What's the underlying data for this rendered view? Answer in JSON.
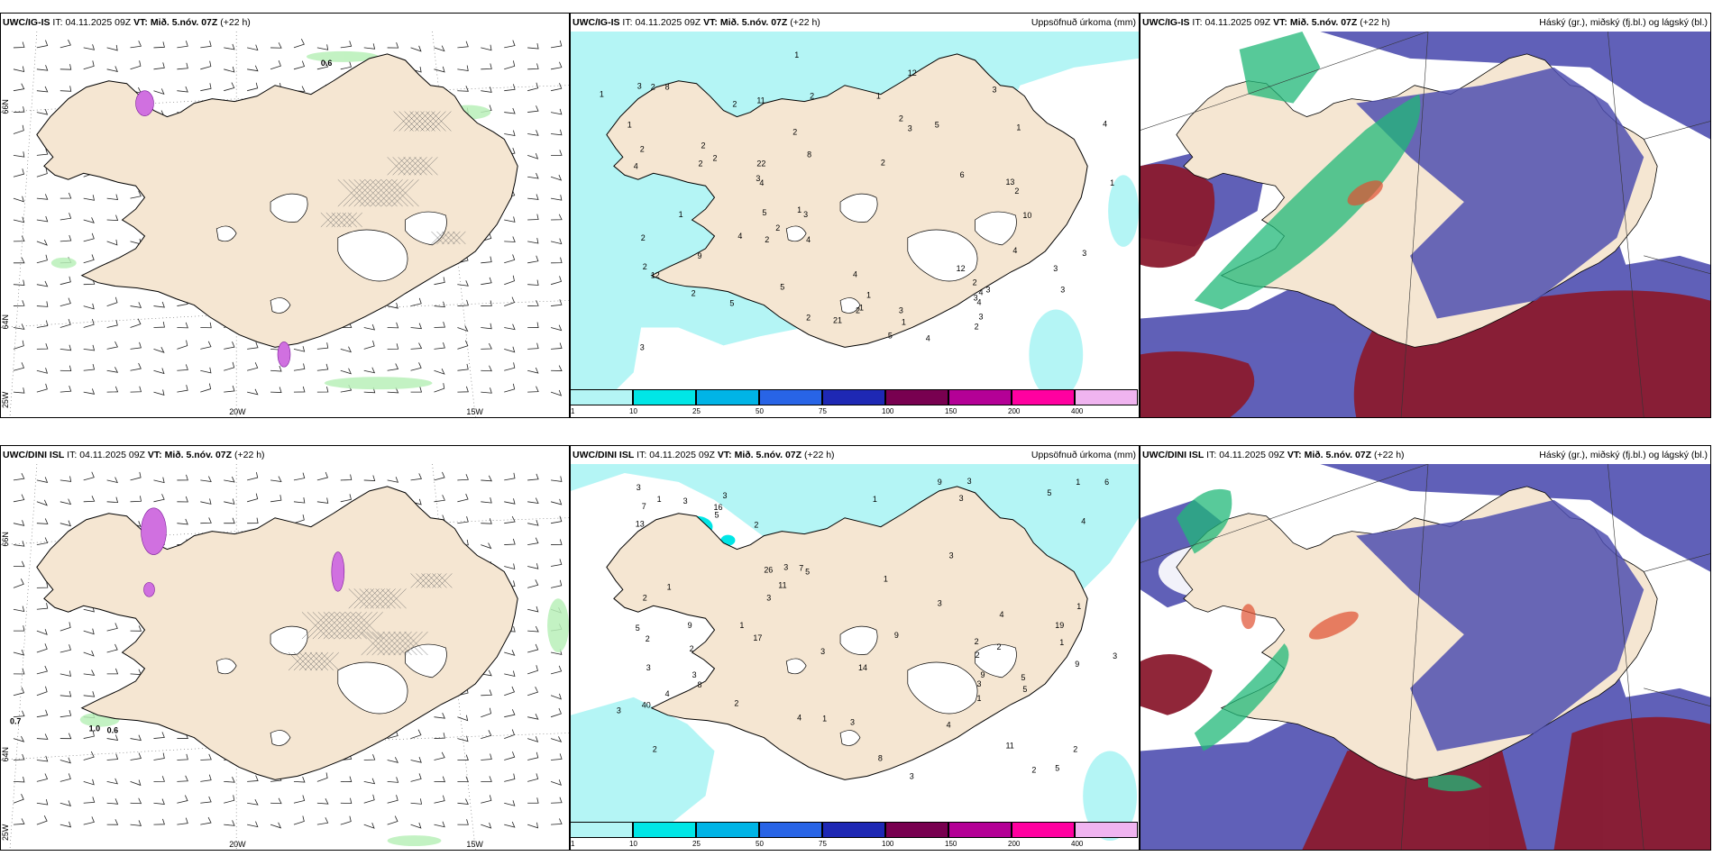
{
  "panels": [
    {
      "id": "p1",
      "model": "UWC/IG-IS",
      "it_label": "IT:",
      "it": "04.11.2025 09Z",
      "vt_label": "VT:",
      "vt": "Mið. 5.nóv. 07Z",
      "lead": "(+22 h)",
      "right": "",
      "type": "wind"
    },
    {
      "id": "p2",
      "model": "UWC/IG-IS",
      "it_label": "IT:",
      "it": "04.11.2025 09Z",
      "vt_label": "VT:",
      "vt": "Mið. 5.nóv. 07Z",
      "lead": "(+22 h)",
      "right": "Uppsöfnuð úrkoma (mm)",
      "type": "precip"
    },
    {
      "id": "p3",
      "model": "UWC/IG-IS",
      "it_label": "IT:",
      "it": "04.11.2025 09Z",
      "vt_label": "VT:",
      "vt": "Mið. 5.nóv. 07Z",
      "lead": "(+22 h)",
      "right": "Háský (gr.), miðský (fj.bl.) og lágský (bl.)",
      "type": "cloud"
    },
    {
      "id": "p4",
      "model": "UWC/DINI ISL",
      "it_label": "IT:",
      "it": "04.11.2025 09Z",
      "vt_label": "VT:",
      "vt": "Mið. 5.nóv. 07Z",
      "lead": "(+22 h)",
      "right": "",
      "type": "wind"
    },
    {
      "id": "p5",
      "model": "UWC/DINI ISL",
      "it_label": "IT:",
      "it": "04.11.2025 09Z",
      "vt_label": "VT:",
      "vt": "Mið. 5.nóv. 07Z",
      "lead": "(+22 h)",
      "right": "Uppsöfnuð úrkoma (mm)",
      "type": "precip"
    },
    {
      "id": "p6",
      "model": "UWC/DINI ISL",
      "it_label": "IT:",
      "it": "04.11.2025 09Z",
      "vt_label": "VT:",
      "vt": "Mið. 5.nóv. 07Z",
      "lead": "(+22 h)",
      "right": "Háský (gr.), miðský (fj.bl.) og lágský (bl.)",
      "type": "cloud"
    }
  ],
  "axis_labels": {
    "lat66": "66N",
    "lat64": "64N",
    "lon25": "25W",
    "lon20": "20W",
    "lon15": "15W",
    "lat65": "65N"
  },
  "wind_values_top": [
    "0.6"
  ],
  "wind_values_bottom": [
    "0.7",
    "1.0",
    "0.6"
  ],
  "precip_colorbar": {
    "colors": [
      "#b4f5f5",
      "#00e6e6",
      "#00b4e6",
      "#2864e6",
      "#1e28b4",
      "#780050",
      "#b40096",
      "#ff00a0",
      "#f0b4f0"
    ],
    "ticks": [
      "1",
      "10",
      "25",
      "50",
      "75",
      "100",
      "150",
      "200",
      "400"
    ]
  },
  "precip_numbers_top": [
    "2",
    "1",
    "2",
    "1",
    "1",
    "12",
    "1",
    "2",
    "13",
    "2",
    "9",
    "3",
    "21",
    "4",
    "3",
    "1",
    "2",
    "4",
    "3",
    "2",
    "8",
    "10",
    "2",
    "4",
    "3",
    "5",
    "12",
    "5",
    "11",
    "22",
    "3",
    "12",
    "4",
    "4",
    "3",
    "2",
    "2",
    "3",
    "3",
    "4",
    "3",
    "2",
    "5",
    "2",
    "4",
    "2",
    "2",
    "4",
    "1",
    "2",
    "2",
    "1",
    "1",
    "6",
    "4",
    "5",
    "2",
    "8",
    "5",
    "4",
    "3",
    "3",
    "2",
    "2",
    "1",
    "1",
    "2",
    "1",
    "3",
    "3",
    "2"
  ],
  "precip_numbers_bottom": [
    "2",
    "1",
    "2",
    "3",
    "5",
    "11",
    "40",
    "3",
    "26",
    "3",
    "13",
    "5",
    "7",
    "2",
    "4",
    "1",
    "14",
    "9",
    "7",
    "8",
    "6",
    "5",
    "3",
    "9",
    "9",
    "16",
    "9",
    "2",
    "5",
    "4",
    "8",
    "4",
    "11",
    "17",
    "19",
    "5",
    "3",
    "9",
    "3",
    "4",
    "4",
    "3",
    "5",
    "1",
    "5",
    "2",
    "3",
    "1",
    "3",
    "2",
    "3",
    "3",
    "1",
    "2",
    "1",
    "2",
    "3",
    "3",
    "2",
    "3",
    "2",
    "2",
    "1",
    "3",
    "1",
    "1",
    "3",
    "3",
    "1"
  ],
  "colors": {
    "land": "#f5e6d2",
    "low_cloud": "#4f4fb0",
    "mid_cloud": "#9a9ad6",
    "high_cloud": "#20b878",
    "red_front": "#8a1a2e",
    "sea": "#ffffff",
    "wind_precip": "#b8f0b8"
  }
}
